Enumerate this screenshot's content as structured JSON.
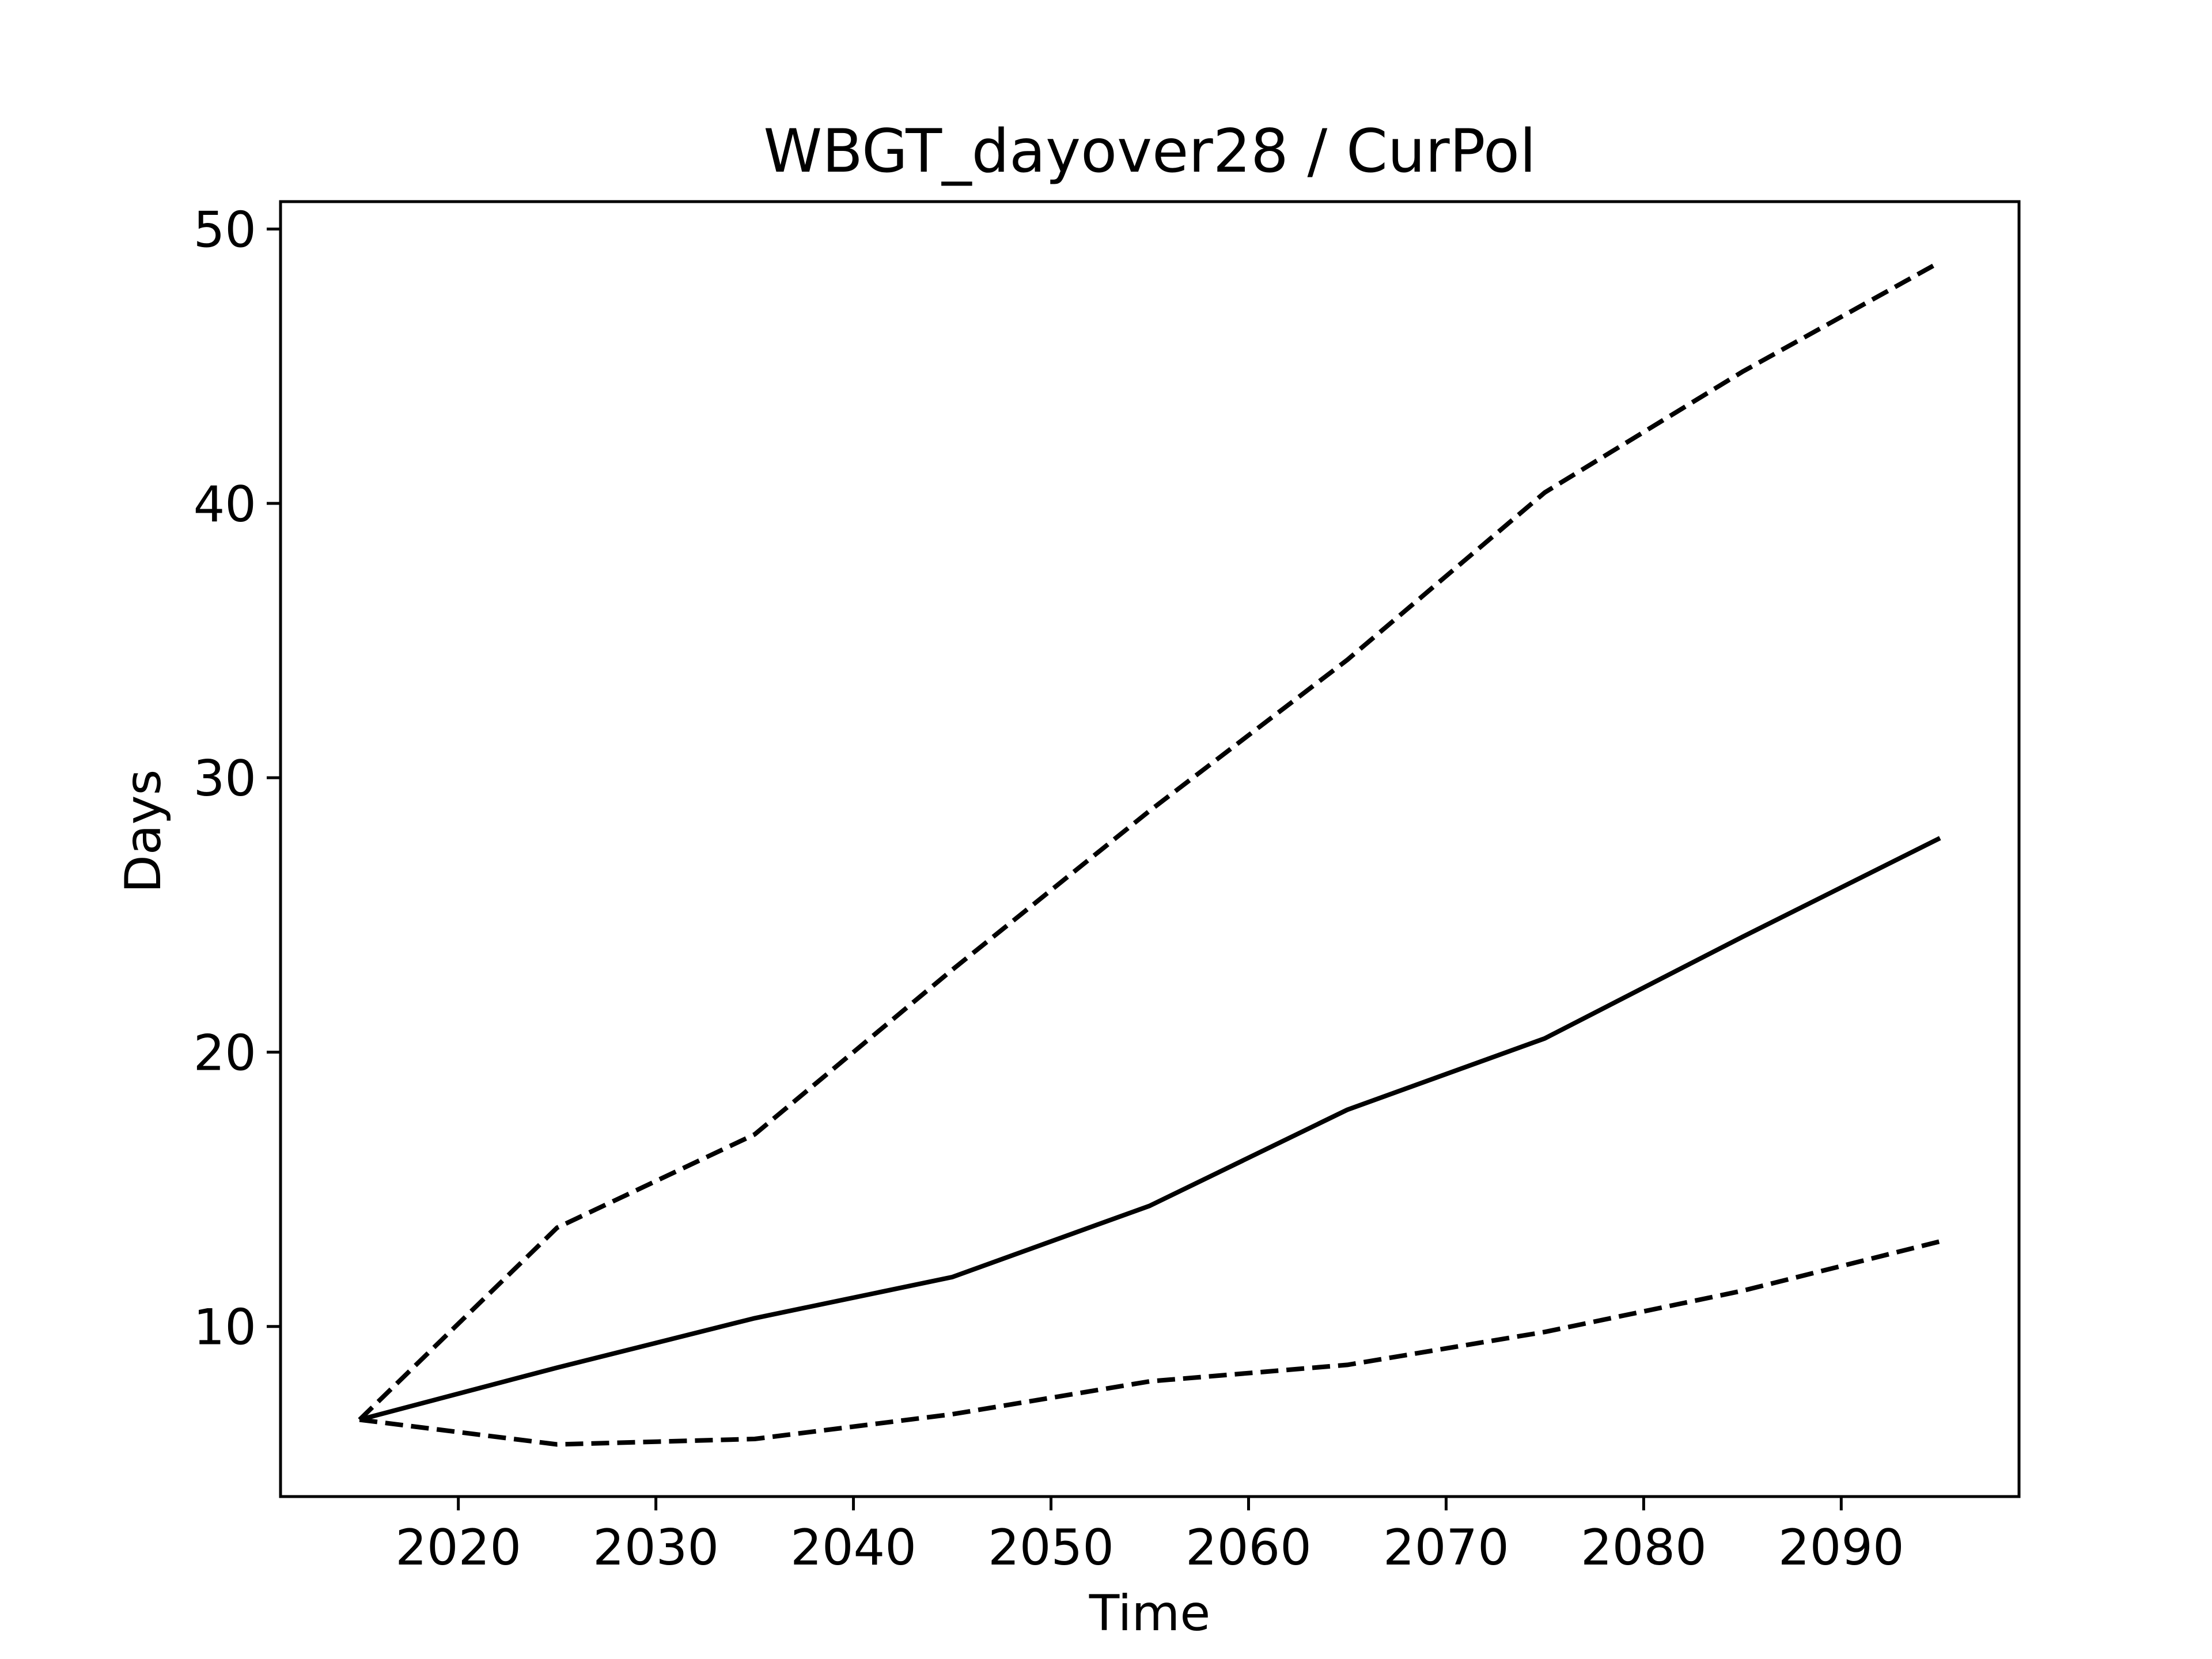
{
  "chart_data": {
    "type": "line",
    "title": "WBGT_dayover28 / CurPol",
    "xlabel": "Time",
    "ylabel": "Days",
    "xlim": [
      2011,
      2099
    ],
    "ylim": [
      3.8,
      51
    ],
    "xticks": [
      2020,
      2030,
      2040,
      2050,
      2060,
      2070,
      2080,
      2090
    ],
    "yticks": [
      10,
      20,
      30,
      40,
      50
    ],
    "grid": false,
    "legend": null,
    "colors": {
      "line": "#000000",
      "frame": "#000000",
      "background": "#ffffff"
    },
    "x": [
      2015,
      2025,
      2035,
      2045,
      2055,
      2065,
      2075,
      2085,
      2095
    ],
    "series": [
      {
        "style": "solid",
        "values": [
          6.6,
          8.5,
          10.3,
          11.8,
          14.4,
          17.9,
          20.5,
          24.2,
          27.8
        ]
      },
      {
        "style": "dashed",
        "values": [
          6.6,
          13.6,
          17.0,
          23.0,
          28.8,
          34.3,
          40.4,
          44.8,
          48.8
        ]
      },
      {
        "style": "dashed",
        "values": [
          6.6,
          5.7,
          5.9,
          6.8,
          8.0,
          8.6,
          9.8,
          11.3,
          13.1
        ]
      }
    ]
  }
}
